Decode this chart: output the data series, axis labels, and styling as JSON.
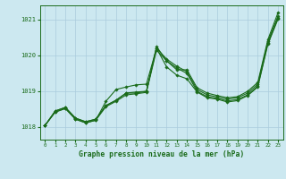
{
  "title": "Graphe pression niveau de la mer (hPa)",
  "background_color": "#cce8f0",
  "grid_color": "#aaccdd",
  "line_color": "#1a6b1a",
  "xlim": [
    -0.5,
    23.5
  ],
  "ylim": [
    1017.65,
    1021.4
  ],
  "yticks": [
    1018,
    1019,
    1020,
    1021
  ],
  "xticks": [
    0,
    1,
    2,
    3,
    4,
    5,
    6,
    7,
    8,
    9,
    10,
    11,
    12,
    13,
    14,
    15,
    16,
    17,
    18,
    19,
    20,
    21,
    22,
    23
  ],
  "series": [
    [
      1018.05,
      1018.45,
      1018.55,
      1018.25,
      1018.15,
      1018.22,
      1018.6,
      1018.75,
      1018.95,
      1018.95,
      1019.0,
      1020.25,
      1019.85,
      1019.6,
      1019.6,
      1019.1,
      1018.95,
      1018.88,
      1018.82,
      1018.85,
      1019.0,
      1019.25,
      1020.45,
      1021.2
    ],
    [
      1018.05,
      1018.45,
      1018.55,
      1018.25,
      1018.15,
      1018.22,
      1018.6,
      1018.75,
      1018.95,
      1018.98,
      1019.0,
      1020.2,
      1019.9,
      1019.7,
      1019.55,
      1019.05,
      1018.9,
      1018.84,
      1018.78,
      1018.82,
      1018.95,
      1019.2,
      1020.4,
      1021.1
    ],
    [
      1018.05,
      1018.42,
      1018.52,
      1018.22,
      1018.12,
      1018.19,
      1018.57,
      1018.72,
      1018.9,
      1018.93,
      1018.97,
      1020.15,
      1019.85,
      1019.65,
      1019.5,
      1019.0,
      1018.85,
      1018.8,
      1018.73,
      1018.77,
      1018.9,
      1019.15,
      1020.35,
      1021.05
    ],
    [
      1018.05,
      1018.42,
      1018.52,
      1018.22,
      1018.12,
      1018.19,
      1018.72,
      1019.05,
      1019.12,
      1019.18,
      1019.2,
      1020.2,
      1019.68,
      1019.45,
      1019.35,
      1018.98,
      1018.82,
      1018.78,
      1018.7,
      1018.74,
      1018.88,
      1019.12,
      1020.32,
      1021.02
    ]
  ],
  "marker": "D",
  "marker_size": 1.8,
  "linewidth": 0.8
}
